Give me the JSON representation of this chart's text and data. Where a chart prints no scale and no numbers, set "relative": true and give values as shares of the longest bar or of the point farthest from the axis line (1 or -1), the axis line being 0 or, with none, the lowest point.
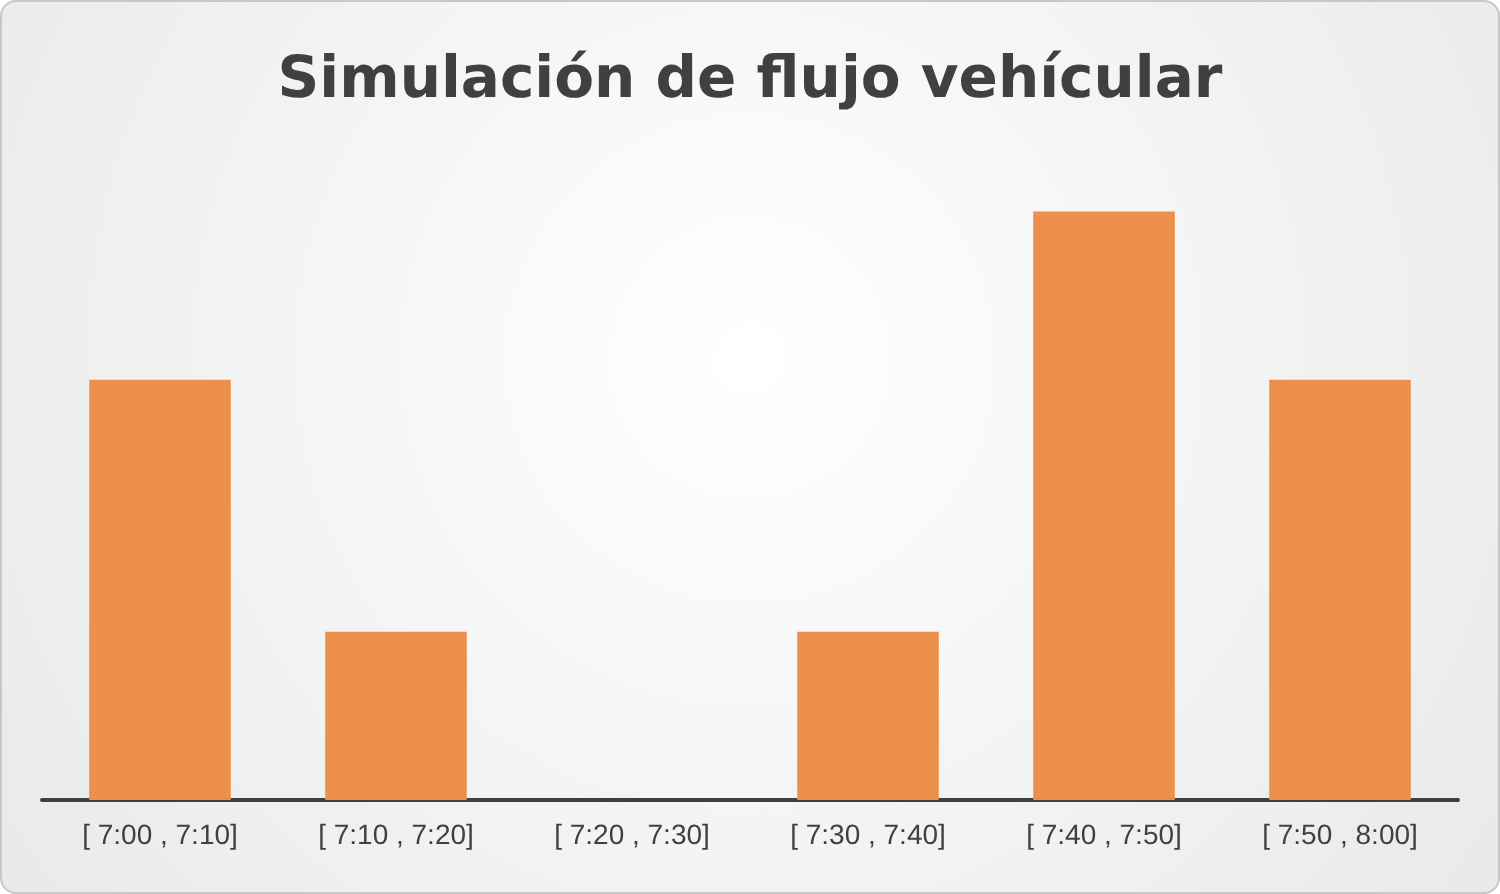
{
  "chart_data": {
    "type": "bar",
    "title": "Simulación de flujo vehícular",
    "categories": [
      "[ 7:00 , 7:10]",
      "[ 7:10 , 7:20]",
      "[ 7:20 , 7:30]",
      "[ 7:30 , 7:40]",
      "[ 7:40 , 7:50]",
      "[ 7:50 , 8:00]"
    ],
    "values": [
      0.714,
      0.286,
      0,
      0.286,
      1,
      0.714
    ],
    "color": "#ed8f4d",
    "relative": true
  }
}
